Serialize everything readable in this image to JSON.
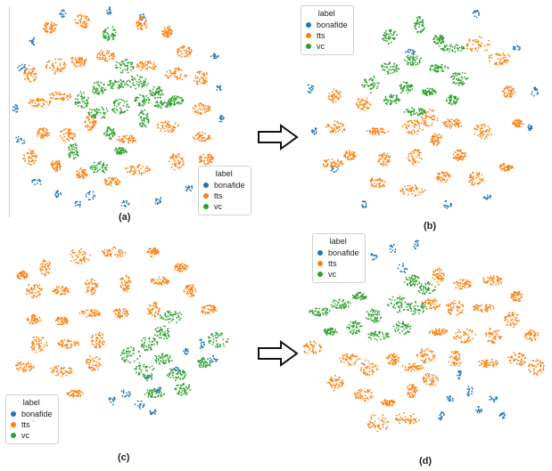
{
  "figure": {
    "arrow_icon": "right-arrow-icon",
    "captions": [
      "(a)",
      "(b)",
      "(c)",
      "(d)"
    ]
  },
  "legend": {
    "title": "label",
    "entries": [
      {
        "name": "bonafide",
        "color": "#1f77b4"
      },
      {
        "name": "tts",
        "color": "#ff7f0e"
      },
      {
        "name": "vc",
        "color": "#2ca02c"
      }
    ]
  },
  "chart_data": [
    {
      "type": "scatter",
      "panel": "(a)",
      "title": "",
      "xlabel": "",
      "ylabel": "",
      "grid": false,
      "legend_position": "bottom-right",
      "series": [
        {
          "name": "bonafide",
          "color": "#1f77b4",
          "clusters": [
            [
              0.23,
              0.03
            ],
            [
              0.45,
              0.02
            ],
            [
              0.6,
              0.05
            ],
            [
              0.09,
              0.17
            ],
            [
              0.04,
              0.3
            ],
            [
              0.94,
              0.24
            ],
            [
              0.01,
              0.5
            ],
            [
              0.03,
              0.66
            ],
            [
              0.97,
              0.55
            ],
            [
              0.11,
              0.86
            ],
            [
              0.21,
              0.92
            ],
            [
              0.36,
              0.93
            ],
            [
              0.52,
              0.97
            ],
            [
              0.82,
              0.89
            ],
            [
              0.68,
              0.96
            ],
            [
              0.96,
              0.4
            ],
            [
              0.3,
              0.97
            ]
          ]
        },
        {
          "name": "tts",
          "color": "#ff7f0e",
          "clusters": [
            [
              0.17,
              0.1
            ],
            [
              0.32,
              0.07
            ],
            [
              0.6,
              0.08
            ],
            [
              0.72,
              0.12
            ],
            [
              0.8,
              0.22
            ],
            [
              0.08,
              0.33
            ],
            [
              0.2,
              0.29
            ],
            [
              0.3,
              0.27
            ],
            [
              0.43,
              0.24
            ],
            [
              0.62,
              0.29
            ],
            [
              0.76,
              0.33
            ],
            [
              0.88,
              0.35
            ],
            [
              0.12,
              0.47
            ],
            [
              0.22,
              0.44
            ],
            [
              0.88,
              0.5
            ],
            [
              0.36,
              0.57
            ],
            [
              0.14,
              0.62
            ],
            [
              0.25,
              0.63
            ],
            [
              0.72,
              0.59
            ],
            [
              0.88,
              0.64
            ],
            [
              0.08,
              0.74
            ],
            [
              0.2,
              0.78
            ],
            [
              0.32,
              0.82
            ],
            [
              0.58,
              0.8
            ],
            [
              0.76,
              0.76
            ],
            [
              0.46,
              0.86
            ],
            [
              0.9,
              0.75
            ],
            [
              0.53,
              0.65
            ]
          ]
        },
        {
          "name": "vc",
          "color": "#2ca02c",
          "clusters": [
            [
              0.45,
              0.13
            ],
            [
              0.52,
              0.29
            ],
            [
              0.6,
              0.46
            ],
            [
              0.7,
              0.48
            ],
            [
              0.76,
              0.46
            ],
            [
              0.67,
              0.42
            ],
            [
              0.4,
              0.4
            ],
            [
              0.48,
              0.38
            ],
            [
              0.58,
              0.37
            ],
            [
              0.5,
              0.49
            ],
            [
              0.4,
              0.52
            ],
            [
              0.61,
              0.55
            ],
            [
              0.32,
              0.46
            ],
            [
              0.4,
              0.79
            ],
            [
              0.28,
              0.71
            ],
            [
              0.5,
              0.71
            ],
            [
              0.45,
              0.62
            ]
          ]
        }
      ]
    },
    {
      "type": "scatter",
      "panel": "(b)",
      "title": "",
      "xlabel": "",
      "ylabel": "",
      "grid": false,
      "legend_position": "top-left",
      "series": [
        {
          "name": "bonafide",
          "color": "#1f77b4",
          "clusters": [
            [
              0.72,
              0.02
            ],
            [
              0.89,
              0.2
            ],
            [
              0.97,
              0.42
            ],
            [
              0.95,
              0.6
            ],
            [
              0.01,
              0.4
            ],
            [
              0.03,
              0.62
            ],
            [
              0.11,
              0.81
            ],
            [
              0.24,
              0.99
            ],
            [
              0.6,
              0.99
            ],
            [
              0.77,
              0.95
            ],
            [
              0.44,
              0.22
            ]
          ]
        },
        {
          "name": "tts",
          "color": "#ff7f0e",
          "clusters": [
            [
              0.73,
              0.18
            ],
            [
              0.82,
              0.25
            ],
            [
              0.86,
              0.42
            ],
            [
              0.9,
              0.58
            ],
            [
              0.12,
              0.44
            ],
            [
              0.24,
              0.48
            ],
            [
              0.12,
              0.6
            ],
            [
              0.3,
              0.62
            ],
            [
              0.45,
              0.6
            ],
            [
              0.62,
              0.58
            ],
            [
              0.75,
              0.62
            ],
            [
              0.55,
              0.66
            ],
            [
              0.65,
              0.74
            ],
            [
              0.46,
              0.75
            ],
            [
              0.33,
              0.76
            ],
            [
              0.18,
              0.74
            ],
            [
              0.3,
              0.88
            ],
            [
              0.45,
              0.92
            ],
            [
              0.58,
              0.85
            ],
            [
              0.72,
              0.86
            ],
            [
              0.85,
              0.8
            ],
            [
              0.1,
              0.78
            ],
            [
              0.52,
              0.55
            ]
          ]
        },
        {
          "name": "vc",
          "color": "#2ca02c",
          "clusters": [
            [
              0.35,
              0.14
            ],
            [
              0.48,
              0.08
            ],
            [
              0.56,
              0.16
            ],
            [
              0.45,
              0.26
            ],
            [
              0.35,
              0.3
            ],
            [
              0.56,
              0.3
            ],
            [
              0.65,
              0.35
            ],
            [
              0.27,
              0.38
            ],
            [
              0.42,
              0.4
            ],
            [
              0.52,
              0.42
            ],
            [
              0.62,
              0.46
            ],
            [
              0.36,
              0.46
            ],
            [
              0.46,
              0.52
            ],
            [
              0.62,
              0.2
            ]
          ]
        }
      ]
    },
    {
      "type": "scatter",
      "panel": "(c)",
      "title": "",
      "xlabel": "",
      "ylabel": "",
      "grid": false,
      "legend_position": "bottom-left",
      "series": [
        {
          "name": "bonafide",
          "color": "#1f77b4",
          "clusters": [
            [
              0.76,
              0.62
            ],
            [
              0.83,
              0.58
            ],
            [
              0.72,
              0.72
            ],
            [
              0.5,
              0.84
            ],
            [
              0.56,
              0.9
            ],
            [
              0.64,
              0.82
            ],
            [
              0.44,
              0.88
            ],
            [
              0.6,
              0.76
            ],
            [
              0.88,
              0.66
            ],
            [
              0.62,
              0.94
            ],
            [
              0.1,
              0.97
            ]
          ]
        },
        {
          "name": "tts",
          "color": "#ff7f0e",
          "clusters": [
            [
              0.15,
              0.18
            ],
            [
              0.3,
              0.12
            ],
            [
              0.45,
              0.1
            ],
            [
              0.62,
              0.1
            ],
            [
              0.1,
              0.3
            ],
            [
              0.22,
              0.3
            ],
            [
              0.35,
              0.28
            ],
            [
              0.5,
              0.26
            ],
            [
              0.65,
              0.25
            ],
            [
              0.78,
              0.3
            ],
            [
              0.1,
              0.45
            ],
            [
              0.22,
              0.46
            ],
            [
              0.34,
              0.42
            ],
            [
              0.48,
              0.42
            ],
            [
              0.62,
              0.4
            ],
            [
              0.86,
              0.4
            ],
            [
              0.12,
              0.58
            ],
            [
              0.25,
              0.58
            ],
            [
              0.38,
              0.56
            ],
            [
              0.06,
              0.7
            ],
            [
              0.22,
              0.72
            ],
            [
              0.36,
              0.68
            ],
            [
              0.28,
              0.84
            ],
            [
              0.74,
              0.18
            ],
            [
              0.05,
              0.22
            ]
          ]
        },
        {
          "name": "vc",
          "color": "#2ca02c",
          "clusters": [
            [
              0.66,
              0.52
            ],
            [
              0.7,
              0.44
            ],
            [
              0.6,
              0.58
            ],
            [
              0.66,
              0.66
            ],
            [
              0.58,
              0.72
            ],
            [
              0.72,
              0.74
            ],
            [
              0.84,
              0.68
            ],
            [
              0.9,
              0.56
            ],
            [
              0.62,
              0.84
            ],
            [
              0.75,
              0.82
            ],
            [
              0.52,
              0.64
            ]
          ]
        }
      ]
    },
    {
      "type": "scatter",
      "panel": "(d)",
      "title": "",
      "xlabel": "",
      "ylabel": "",
      "grid": false,
      "legend_position": "top-left",
      "series": [
        {
          "name": "bonafide",
          "color": "#1f77b4",
          "clusters": [
            [
              0.28,
              0.1
            ],
            [
              0.36,
              0.06
            ],
            [
              0.46,
              0.04
            ],
            [
              0.4,
              0.16
            ],
            [
              0.6,
              0.82
            ],
            [
              0.68,
              0.78
            ],
            [
              0.72,
              0.88
            ],
            [
              0.56,
              0.9
            ],
            [
              0.78,
              0.82
            ],
            [
              0.64,
              0.7
            ],
            [
              0.82,
              0.9
            ]
          ]
        },
        {
          "name": "tts",
          "color": "#ff7f0e",
          "clusters": [
            [
              0.55,
              0.2
            ],
            [
              0.65,
              0.24
            ],
            [
              0.78,
              0.22
            ],
            [
              0.88,
              0.3
            ],
            [
              0.52,
              0.34
            ],
            [
              0.62,
              0.36
            ],
            [
              0.74,
              0.36
            ],
            [
              0.86,
              0.42
            ],
            [
              0.94,
              0.5
            ],
            [
              0.55,
              0.48
            ],
            [
              0.66,
              0.5
            ],
            [
              0.78,
              0.5
            ],
            [
              0.88,
              0.62
            ],
            [
              0.5,
              0.6
            ],
            [
              0.62,
              0.62
            ],
            [
              0.76,
              0.64
            ],
            [
              0.18,
              0.62
            ],
            [
              0.26,
              0.66
            ],
            [
              0.36,
              0.62
            ],
            [
              0.44,
              0.66
            ],
            [
              0.12,
              0.74
            ],
            [
              0.24,
              0.8
            ],
            [
              0.34,
              0.84
            ],
            [
              0.44,
              0.78
            ],
            [
              0.42,
              0.92
            ],
            [
              0.3,
              0.94
            ],
            [
              0.52,
              0.72
            ],
            [
              0.96,
              0.66
            ],
            [
              0.02,
              0.56
            ]
          ]
        },
        {
          "name": "vc",
          "color": "#2ca02c",
          "clusters": [
            [
              0.06,
              0.38
            ],
            [
              0.14,
              0.34
            ],
            [
              0.22,
              0.3
            ],
            [
              0.28,
              0.4
            ],
            [
              0.38,
              0.34
            ],
            [
              0.46,
              0.36
            ],
            [
              0.4,
              0.46
            ],
            [
              0.3,
              0.5
            ],
            [
              0.2,
              0.46
            ],
            [
              0.1,
              0.48
            ],
            [
              0.5,
              0.26
            ],
            [
              0.44,
              0.22
            ]
          ]
        }
      ]
    }
  ]
}
